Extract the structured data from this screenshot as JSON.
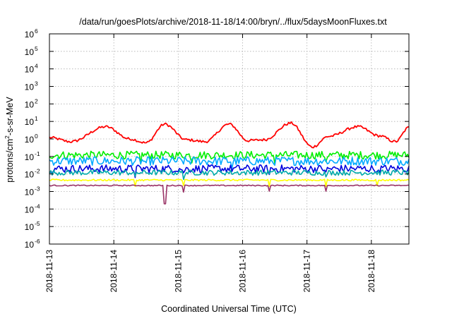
{
  "chart_data": {
    "type": "line",
    "title": "/data/run/goesPlots/archive/2018-11-18/14:00/bryn/../flux/5daysMoonFluxes.txt",
    "xlabel": "Coordinated Universal Time (UTC)",
    "ylabel": "protons/cm2-s-sr-MeV",
    "ylabel_parts": {
      "pre": "protons/cm",
      "sup": "2",
      "post": "-s-sr-MeV"
    },
    "y_scale": "log",
    "ylim": [
      1e-06,
      1000000.0
    ],
    "y_ticks": [
      {
        "base": "10",
        "exp": "-6",
        "value": 1e-06
      },
      {
        "base": "10",
        "exp": "-5",
        "value": 1e-05
      },
      {
        "base": "10",
        "exp": "-4",
        "value": 0.0001
      },
      {
        "base": "10",
        "exp": "-3",
        "value": 0.001
      },
      {
        "base": "10",
        "exp": "-2",
        "value": 0.01
      },
      {
        "base": "10",
        "exp": "-1",
        "value": 0.1
      },
      {
        "base": "10",
        "exp": "0",
        "value": 1
      },
      {
        "base": "10",
        "exp": "1",
        "value": 10
      },
      {
        "base": "10",
        "exp": "2",
        "value": 100
      },
      {
        "base": "10",
        "exp": "3",
        "value": 1000
      },
      {
        "base": "10",
        "exp": "4",
        "value": 10000
      },
      {
        "base": "10",
        "exp": "5",
        "value": 100000
      },
      {
        "base": "10",
        "exp": "6",
        "value": 1000000
      }
    ],
    "xlim": [
      "2018-11-13T00:00",
      "2018-11-18T14:00"
    ],
    "x_ticks": [
      "2018-11-13",
      "2018-11-14",
      "2018-11-15",
      "2018-11-16",
      "2018-11-17",
      "2018-11-18"
    ],
    "grid": true,
    "legend": "none",
    "series": [
      {
        "color": "#ff0000",
        "baseline": 1.0,
        "amplitude": 5.0,
        "noise": 0.15,
        "x": [
          "2018-11-13T00:00",
          "2018-11-13T08:00",
          "2018-11-13T21:00",
          "2018-11-14T06:00",
          "2018-11-14T12:00",
          "2018-11-14T19:00",
          "2018-11-15T03:00",
          "2018-11-15T10:00",
          "2018-11-15T19:00",
          "2018-11-16T02:00",
          "2018-11-16T08:00",
          "2018-11-16T18:00",
          "2018-11-17T02:00",
          "2018-11-17T08:00",
          "2018-11-17T19:00",
          "2018-11-18T03:00",
          "2018-11-18T09:00",
          "2018-11-18T14:00"
        ],
        "y": [
          1.2,
          0.7,
          5.0,
          1.0,
          0.6,
          7.0,
          0.9,
          0.7,
          7.0,
          0.8,
          0.9,
          8.0,
          0.35,
          1.4,
          5.0,
          1.5,
          0.7,
          4.5
        ]
      },
      {
        "color": "#00ee00",
        "value": 0.12,
        "noise": 0.45,
        "spikes": [
          "2018-11-14T10:00",
          "2018-11-15T05:00",
          "2018-11-16T12:00",
          "2018-11-17T07:00"
        ]
      },
      {
        "color": "#00aaff",
        "value": 0.055,
        "noise": 0.5,
        "spikes": [
          "2018-11-14T12:00",
          "2018-11-15T20:00"
        ]
      },
      {
        "color": "#0000dd",
        "value": 0.02,
        "noise": 0.45,
        "spikes": [
          "2018-11-14T08:00",
          "2018-11-15T02:00",
          "2018-11-16T10:00",
          "2018-11-17T07:00",
          "2018-11-18T02:00"
        ]
      },
      {
        "color": "#00aaaa",
        "value": 0.012,
        "noise": 0.3,
        "spikes": [
          "2018-11-14T08:00",
          "2018-11-15T02:00",
          "2018-11-17T07:00"
        ]
      },
      {
        "color": "#ffff00",
        "value": 0.0045,
        "noise": 0.1,
        "spikes": [
          "2018-11-14T08:00",
          "2018-11-15T02:00",
          "2018-11-16T10:00",
          "2018-11-17T07:00",
          "2018-11-18T02:00"
        ]
      },
      {
        "color": "#993366",
        "value": 0.0022,
        "noise": 0.06,
        "spikes": [
          "2018-11-14T19:00",
          "2018-11-15T02:00",
          "2018-11-16T10:00",
          "2018-11-17T07:00"
        ],
        "deep_spike": "2018-11-14T19:00"
      }
    ]
  }
}
